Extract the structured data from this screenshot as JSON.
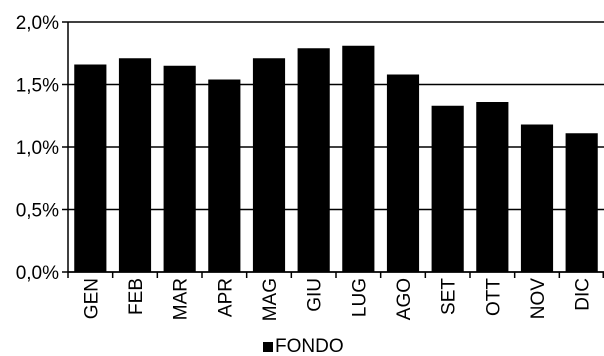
{
  "chart_data": {
    "type": "bar",
    "categories": [
      "GEN",
      "FEB",
      "MAR",
      "APR",
      "MAG",
      "GIU",
      "LUG",
      "AGO",
      "SET",
      "OTT",
      "NOV",
      "DIC"
    ],
    "series": [
      {
        "name": "FONDO",
        "values": [
          1.66,
          1.71,
          1.65,
          1.54,
          1.71,
          1.79,
          1.81,
          1.58,
          1.33,
          1.36,
          1.18,
          1.11
        ]
      }
    ],
    "yticks": [
      "0,0%",
      "0,5%",
      "1,0%",
      "1,5%",
      "2,0%"
    ],
    "ylim": [
      0,
      2.0
    ],
    "ytick_step": 0.5,
    "grid": "horizontal",
    "legend_position": "bottom",
    "bar_color": "#000000"
  }
}
